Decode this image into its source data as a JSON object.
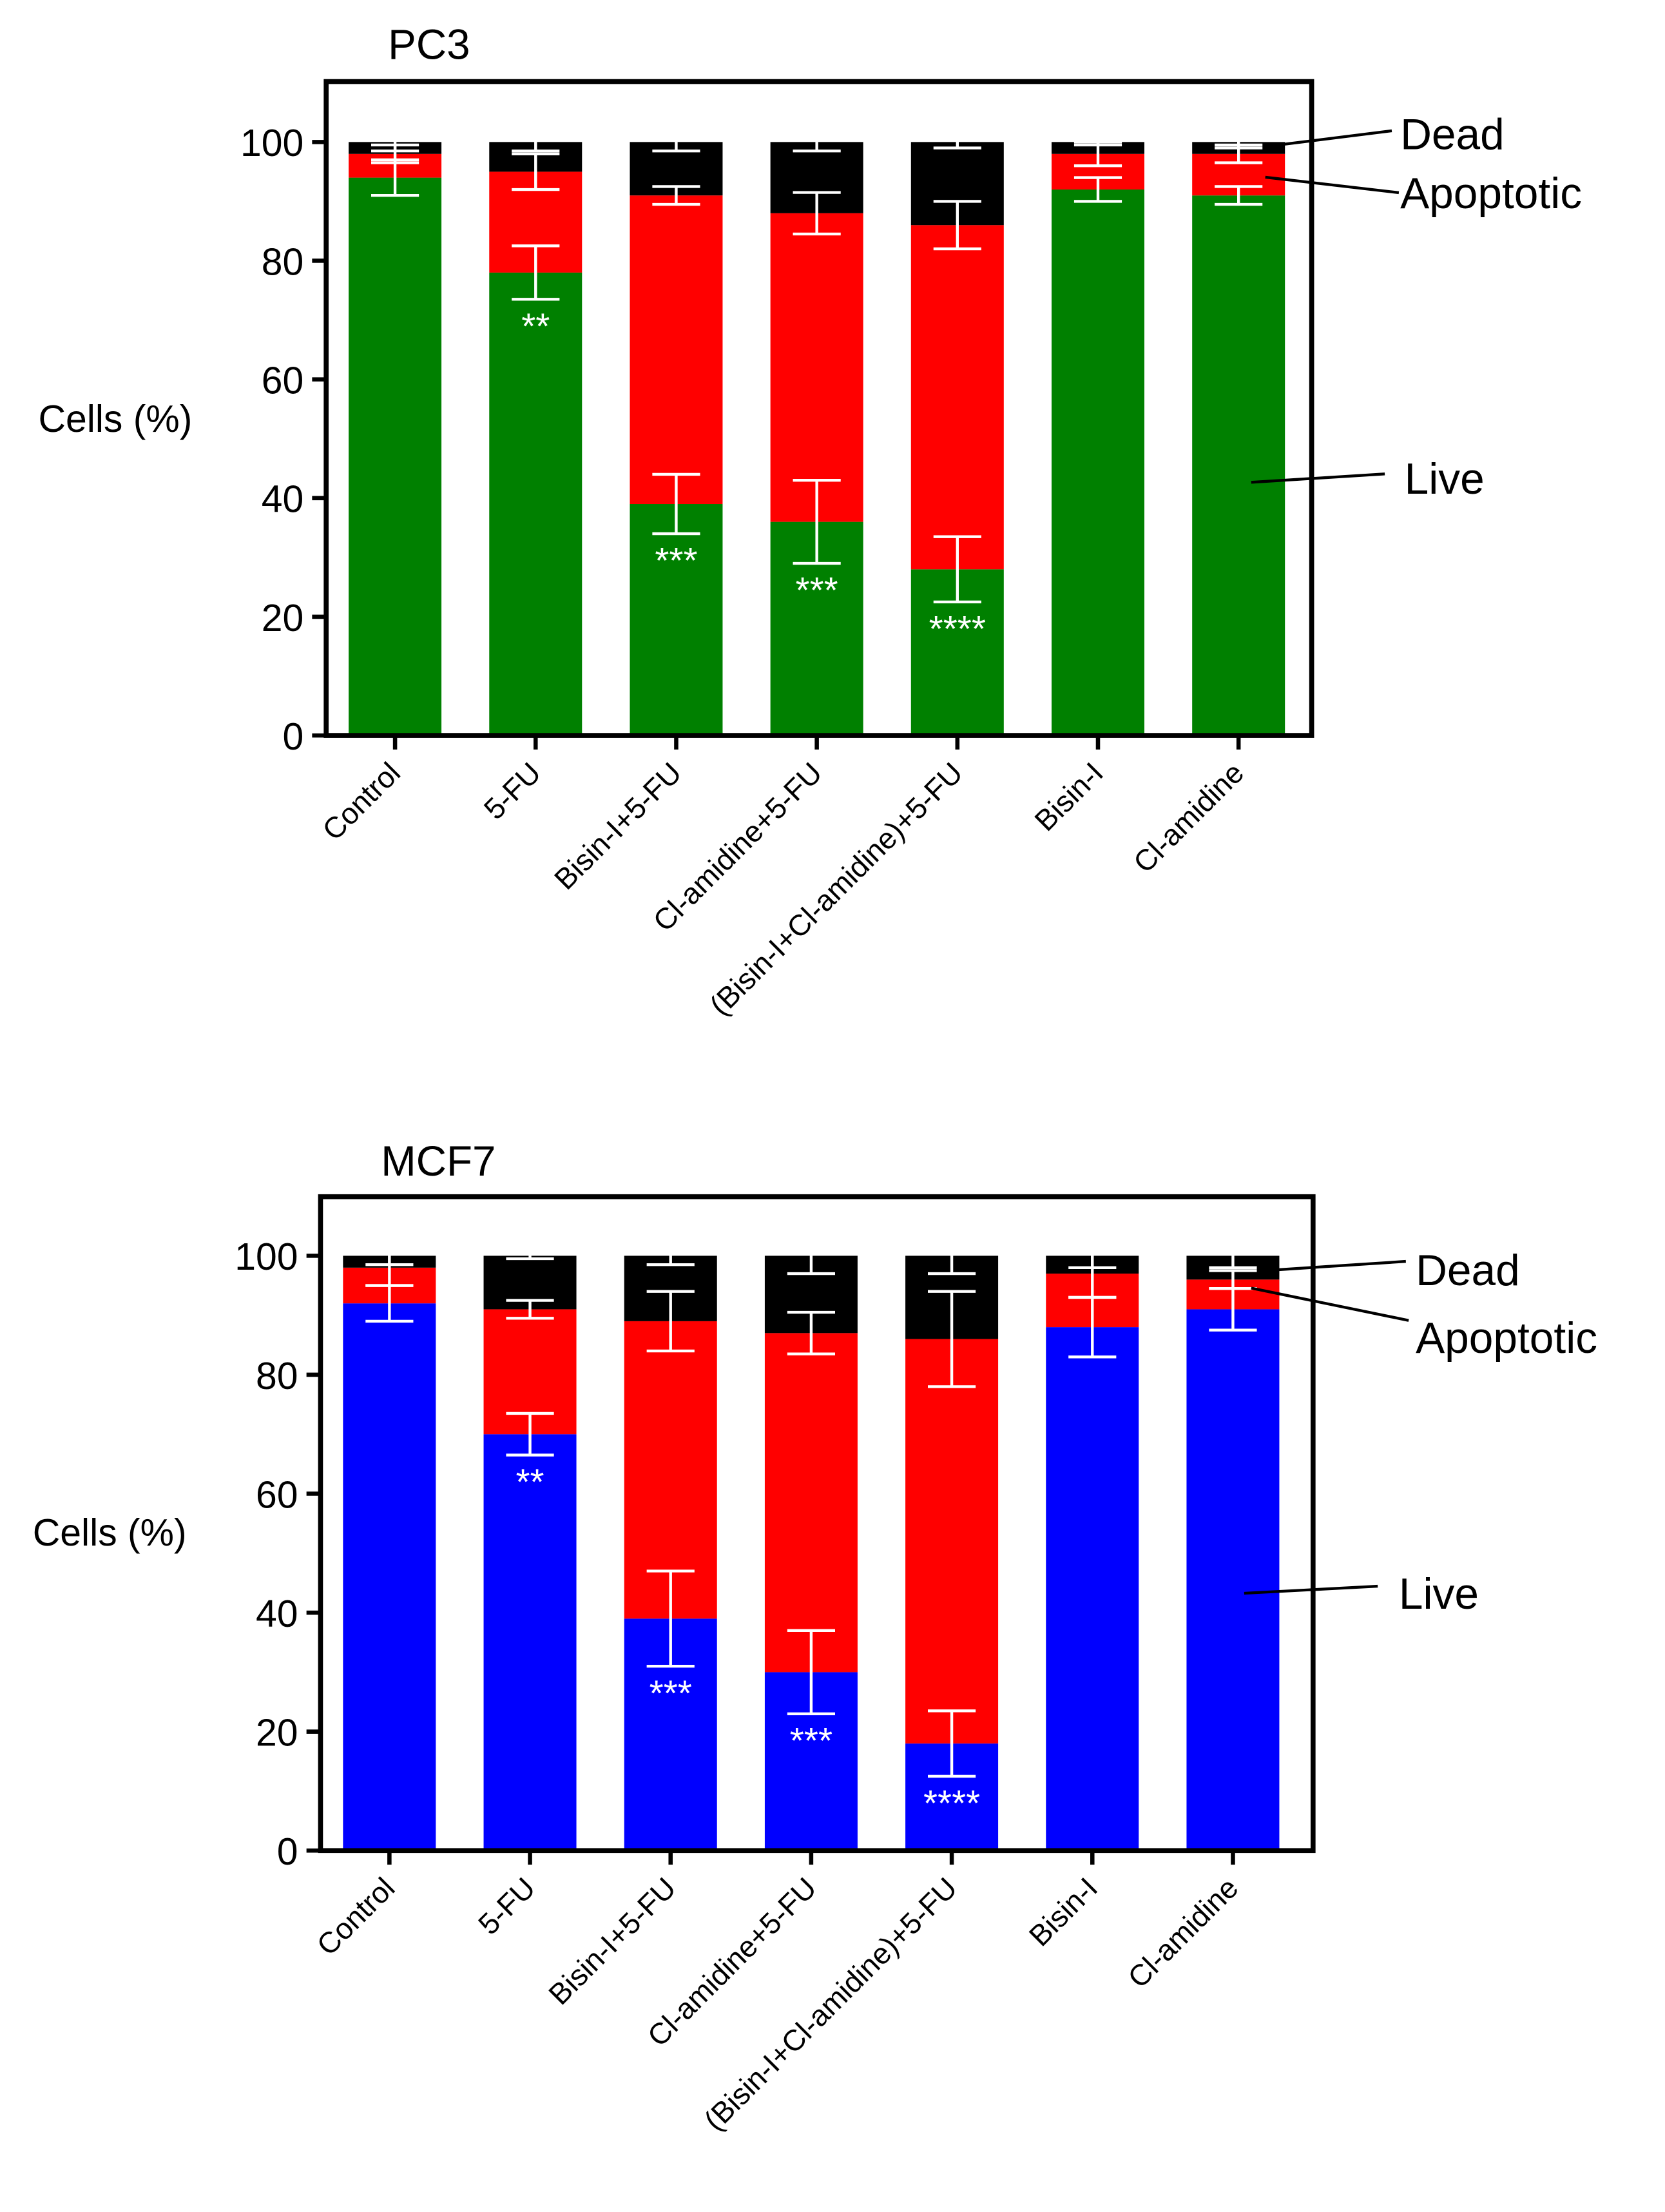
{
  "colors": {
    "dead": "#000000",
    "apoptotic": "#ff0000",
    "errorbar": "#ffffff",
    "axis": "#000000",
    "significance": "#ffffff"
  },
  "chart_data": [
    {
      "type": "bar",
      "stacked": true,
      "title": "PC3",
      "ylabel": "Cells (%)",
      "xlabel": "",
      "ylim": [
        0,
        110
      ],
      "yticks": [
        0,
        20,
        40,
        60,
        80,
        100
      ],
      "grid": false,
      "categories": [
        "Control",
        "5-FU",
        "Bisin-I+5-FU",
        "Cl-amidine+5-FU",
        "(Bisin-I+Cl-amidine)+5-FU",
        "Bisin-I",
        "Cl-amidine"
      ],
      "series": [
        {
          "name": "Live",
          "color": "#008000",
          "values": [
            94,
            78,
            39,
            36,
            28,
            92,
            91
          ],
          "error": [
            3,
            4.5,
            5,
            7,
            5.5,
            2,
            1.5
          ]
        },
        {
          "name": "Apoptotic",
          "color": "#ff0000",
          "values": [
            4,
            17,
            52,
            52,
            58,
            6,
            7
          ],
          "error": [
            1.5,
            3,
            1.5,
            3.5,
            4,
            2,
            1.5
          ]
        },
        {
          "name": "Dead",
          "color": "#000000",
          "values": [
            2,
            5,
            9,
            12,
            14,
            2,
            2
          ],
          "error": [
            1.5,
            1.5,
            1.5,
            1.5,
            1,
            0.5,
            1
          ]
        }
      ],
      "significance": [
        "",
        "**",
        "***",
        "***",
        "****",
        "",
        ""
      ],
      "annotations": [
        "Dead",
        "Apoptotic",
        "Live"
      ]
    },
    {
      "type": "bar",
      "stacked": true,
      "title": "MCF7",
      "ylabel": "Cells (%)",
      "xlabel": "",
      "ylim": [
        0,
        110
      ],
      "yticks": [
        0,
        20,
        40,
        60,
        80,
        100
      ],
      "grid": false,
      "categories": [
        "Control",
        "5-FU",
        "Bisin-I+5-FU",
        "Cl-amidine+5-FU",
        "(Bisin-I+Cl-amidine)+5-FU",
        "Bisin-I",
        "Cl-amidine"
      ],
      "series": [
        {
          "name": "Live",
          "color": "#0000ff",
          "values": [
            92,
            70,
            39,
            30,
            18,
            88,
            91
          ],
          "error": [
            3,
            3.5,
            8,
            7,
            5.5,
            5,
            3.5
          ]
        },
        {
          "name": "Apoptotic",
          "color": "#ff0000",
          "values": [
            6,
            21,
            50,
            57,
            68,
            9,
            5
          ],
          "error": [
            3,
            1.5,
            5,
            3.5,
            8,
            4,
            1.5
          ]
        },
        {
          "name": "Dead",
          "color": "#000000",
          "values": [
            2,
            9,
            11,
            13,
            14,
            3,
            4
          ],
          "error": [
            1.5,
            0.5,
            1.5,
            3,
            3,
            2,
            2
          ]
        }
      ],
      "significance": [
        "",
        "**",
        "***",
        "***",
        "****",
        "",
        ""
      ],
      "annotations": [
        "Dead",
        "Apoptotic",
        "Live"
      ]
    }
  ]
}
